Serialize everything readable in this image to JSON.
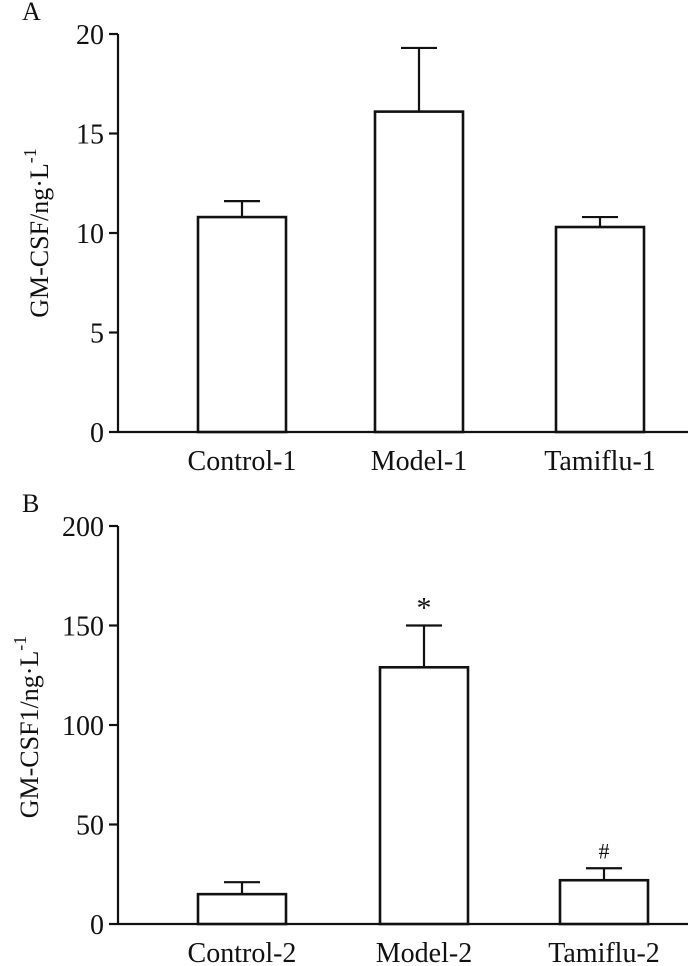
{
  "chart_data": [
    {
      "type": "bar",
      "panel_label": "A",
      "categories": [
        "Control-1",
        "Model-1",
        "Tamiflu-1"
      ],
      "values": [
        10.8,
        16.1,
        10.3
      ],
      "errors": [
        0.8,
        3.2,
        0.5
      ],
      "annotations": [
        "",
        "",
        ""
      ],
      "title": "",
      "xlabel": "",
      "ylabel": "GM-CSF/ng·L",
      "ylabel_superscript": "-1",
      "ylim": [
        0,
        20
      ],
      "yticks": [
        0,
        5,
        10,
        15,
        20
      ],
      "grid": false
    },
    {
      "type": "bar",
      "panel_label": "B",
      "categories": [
        "Control-2",
        "Model-2",
        "Tamiflu-2"
      ],
      "values": [
        15,
        129,
        22
      ],
      "errors": [
        6,
        21,
        6
      ],
      "annotations": [
        "",
        "*",
        "#"
      ],
      "title": "",
      "xlabel": "",
      "ylabel": "GM-CSF1/ng·L",
      "ylabel_superscript": "-1",
      "ylim": [
        0,
        200
      ],
      "yticks": [
        0,
        50,
        100,
        150,
        200
      ],
      "grid": false
    }
  ]
}
